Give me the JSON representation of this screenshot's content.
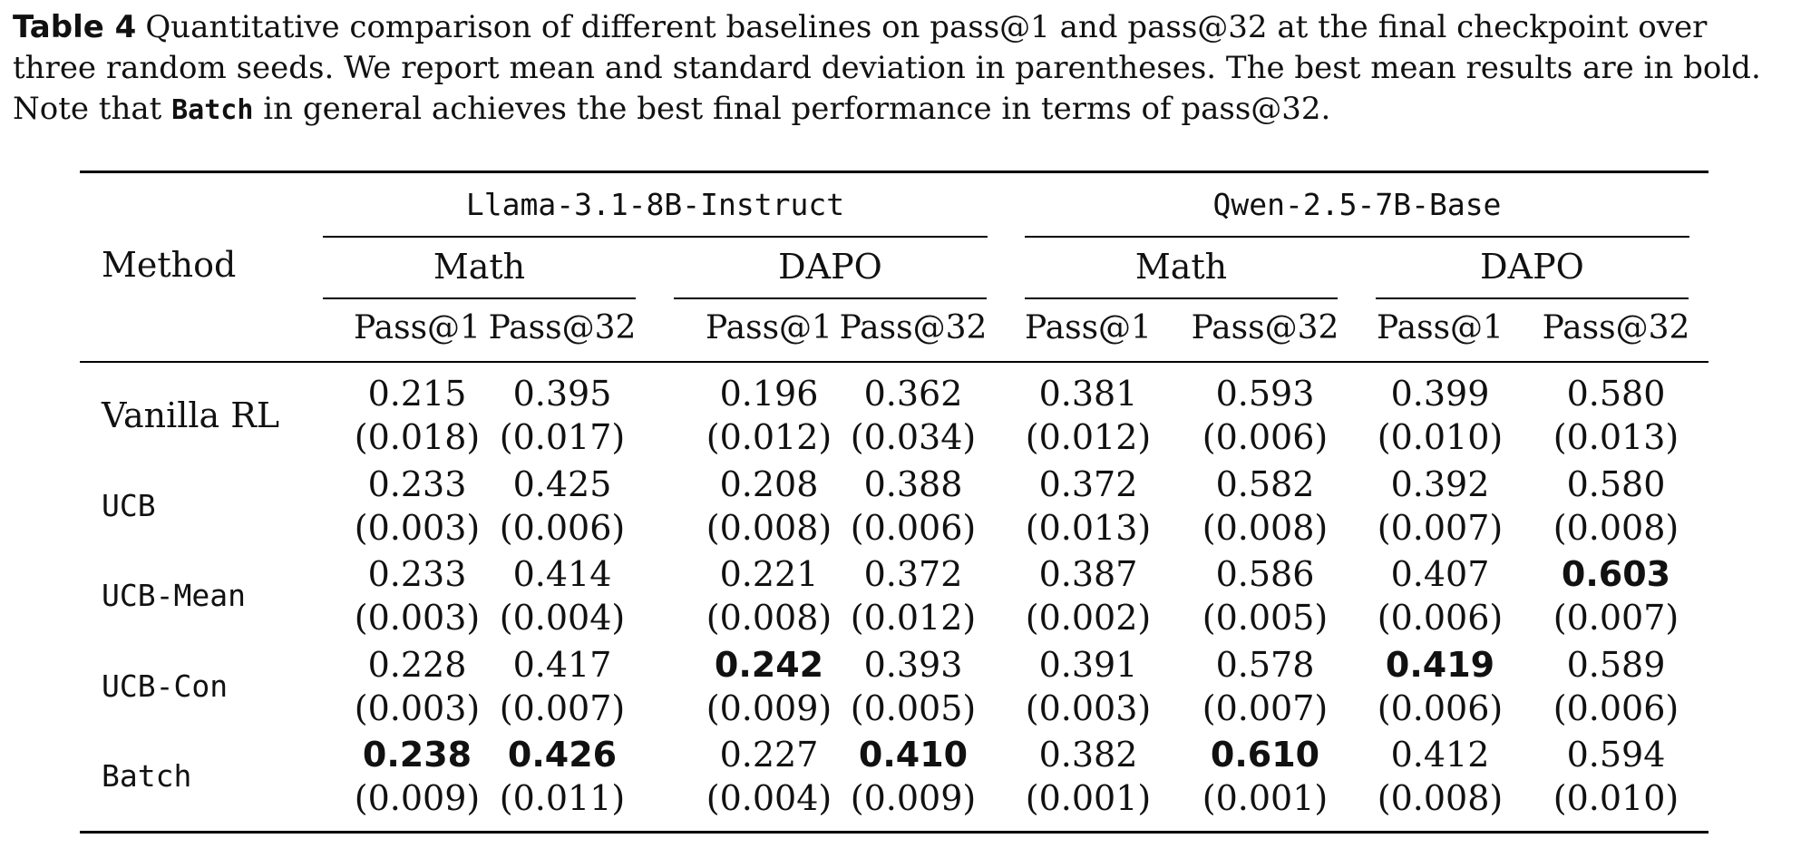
{
  "caption": {
    "label": "Table 4",
    "text_part1": "Quantitative comparison of different baselines on pass@1 and pass@32 at the final checkpoint over three random seeds. We report mean and standard deviation in parentheses. The best mean results are in bold. Note that ",
    "mono_word": "Batch",
    "text_part2": " in general achieves the best final performance in terms of pass@32."
  },
  "table": {
    "method_header": "Method",
    "models": [
      "Llama-3.1-8B-Instruct",
      "Qwen-2.5-7B-Base"
    ],
    "datasets": [
      "Math",
      "DAPO",
      "Math",
      "DAPO"
    ],
    "metrics": [
      "Pass@1",
      "Pass@32",
      "Pass@1",
      "Pass@32",
      "Pass@1",
      "Pass@32",
      "Pass@1",
      "Pass@32"
    ],
    "rows": [
      {
        "method": "Vanilla RL",
        "means": [
          "0.215",
          "0.395",
          "0.196",
          "0.362",
          "0.381",
          "0.593",
          "0.399",
          "0.580"
        ],
        "stds": [
          "(0.018)",
          "(0.017)",
          "(0.012)",
          "(0.034)",
          "(0.012)",
          "(0.006)",
          "(0.010)",
          "(0.013)"
        ],
        "best": []
      },
      {
        "method": "UCB",
        "means": [
          "0.233",
          "0.425",
          "0.208",
          "0.388",
          "0.372",
          "0.582",
          "0.392",
          "0.580"
        ],
        "stds": [
          "(0.003)",
          "(0.006)",
          "(0.008)",
          "(0.006)",
          "(0.013)",
          "(0.008)",
          "(0.007)",
          "(0.008)"
        ],
        "best": []
      },
      {
        "method": "UCB-Mean",
        "means": [
          "0.233",
          "0.414",
          "0.221",
          "0.372",
          "0.387",
          "0.586",
          "0.407",
          "0.603"
        ],
        "stds": [
          "(0.003)",
          "(0.004)",
          "(0.008)",
          "(0.012)",
          "(0.002)",
          "(0.005)",
          "(0.006)",
          "(0.007)"
        ],
        "best": [
          7
        ]
      },
      {
        "method": "UCB-Con",
        "means": [
          "0.228",
          "0.417",
          "0.242",
          "0.393",
          "0.391",
          "0.578",
          "0.419",
          "0.589"
        ],
        "stds": [
          "(0.003)",
          "(0.007)",
          "(0.009)",
          "(0.005)",
          "(0.003)",
          "(0.007)",
          "(0.006)",
          "(0.006)"
        ],
        "best": [
          2,
          6
        ]
      },
      {
        "method": "Batch",
        "means": [
          "0.238",
          "0.426",
          "0.227",
          "0.410",
          "0.382",
          "0.610",
          "0.412",
          "0.594"
        ],
        "stds": [
          "(0.009)",
          "(0.011)",
          "(0.004)",
          "(0.009)",
          "(0.001)",
          "(0.001)",
          "(0.008)",
          "(0.010)"
        ],
        "best": [
          0,
          1,
          3,
          5
        ]
      }
    ]
  }
}
